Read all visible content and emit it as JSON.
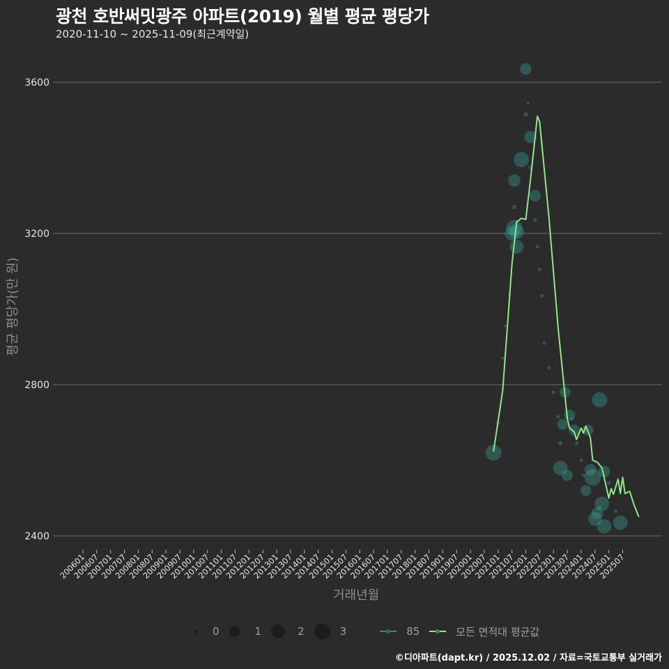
{
  "header": {
    "title": "광천 호반써밋광주 아파트(2019) 월별 평균 평당가",
    "subtitle": "2020-11-10 ~ 2025-11-09(최근계약일)"
  },
  "axes": {
    "ylabel": "평균 평당가(만 원)",
    "xlabel": "거래년월"
  },
  "legend": {
    "size_labels": [
      "0",
      "1",
      "2",
      "3"
    ],
    "series_labels": [
      "85",
      "모든 면적대 평균값"
    ]
  },
  "caption": "©디아파트(dapt.kr) / 2025.12.02 / 자료=국토교통부 실거래가",
  "colors": {
    "background": "#2b2b2b",
    "grid": "#6e6e6e",
    "bubble": "#3aa89a",
    "line": "#90e88a",
    "series85": "#2f8a88"
  },
  "chart_data": {
    "type": "scatter+line",
    "title": "광천 호반써밋광주 아파트(2019) 월별 평균 평당가",
    "subtitle": "2020-11-10 ~ 2025-11-09(최근계약일)",
    "xlabel": "거래년월",
    "ylabel": "평균 평당가(만 원)",
    "ylim": [
      2380,
      3680
    ],
    "yticks": [
      2400,
      2800,
      3200,
      3600
    ],
    "xticks": [
      "200601",
      "200607",
      "200701",
      "200707",
      "200801",
      "200807",
      "200901",
      "200907",
      "201001",
      "201007",
      "201101",
      "201107",
      "201201",
      "201207",
      "201301",
      "201307",
      "201401",
      "201407",
      "201501",
      "201507",
      "201601",
      "201607",
      "201701",
      "201707",
      "201801",
      "201807",
      "201901",
      "201907",
      "202001",
      "202007",
      "202101",
      "202107",
      "202201",
      "202207",
      "202301",
      "202307",
      "202401",
      "202407",
      "202501",
      "202507"
    ],
    "grid": true,
    "legend_position": "bottom",
    "size_legend": {
      "title": "",
      "values": [
        0,
        1,
        2,
        3
      ]
    },
    "series": [
      {
        "name": "85",
        "kind": "bubble",
        "points": [
          {
            "x": "2020-11",
            "y": 2620,
            "size": 2.2
          },
          {
            "x": "2021-01",
            "y": 2700,
            "size": 0.5
          },
          {
            "x": "2021-03",
            "y": 2870,
            "size": 0.4
          },
          {
            "x": "2021-04",
            "y": 2955,
            "size": 0.4
          },
          {
            "x": "2021-06",
            "y": 3040,
            "size": 0.4
          },
          {
            "x": "2021-07",
            "y": 3200,
            "size": 2.0
          },
          {
            "x": "2021-08",
            "y": 3215,
            "size": 2.2
          },
          {
            "x": "2021-09",
            "y": 3165,
            "size": 1.9
          },
          {
            "x": "2021-09",
            "y": 3205,
            "size": 2.0
          },
          {
            "x": "2021-08",
            "y": 3270,
            "size": 0.6
          },
          {
            "x": "2021-08",
            "y": 3340,
            "size": 1.7
          },
          {
            "x": "2021-11",
            "y": 3395,
            "size": 2.1
          },
          {
            "x": "2022-01",
            "y": 3515,
            "size": 0.6
          },
          {
            "x": "2022-01",
            "y": 3635,
            "size": 1.6
          },
          {
            "x": "2022-02",
            "y": 3545,
            "size": 0.4
          },
          {
            "x": "2022-03",
            "y": 3455,
            "size": 1.7
          },
          {
            "x": "2022-03",
            "y": 3375,
            "size": 0.5
          },
          {
            "x": "2022-05",
            "y": 3300,
            "size": 1.6
          },
          {
            "x": "2022-05",
            "y": 3235,
            "size": 0.5
          },
          {
            "x": "2022-06",
            "y": 3165,
            "size": 0.5
          },
          {
            "x": "2022-07",
            "y": 3105,
            "size": 0.5
          },
          {
            "x": "2022-08",
            "y": 3035,
            "size": 0.5
          },
          {
            "x": "2022-09",
            "y": 2910,
            "size": 0.5
          },
          {
            "x": "2022-11",
            "y": 2845,
            "size": 0.5
          },
          {
            "x": "2023-01",
            "y": 2780,
            "size": 0.5
          },
          {
            "x": "2023-03",
            "y": 2715,
            "size": 0.5
          },
          {
            "x": "2023-04",
            "y": 2645,
            "size": 0.6
          },
          {
            "x": "2023-04",
            "y": 2580,
            "size": 2.0
          },
          {
            "x": "2023-05",
            "y": 2695,
            "size": 1.5
          },
          {
            "x": "2023-06",
            "y": 2780,
            "size": 1.5
          },
          {
            "x": "2023-07",
            "y": 2560,
            "size": 1.5
          },
          {
            "x": "2023-08",
            "y": 2720,
            "size": 1.5
          },
          {
            "x": "2023-09",
            "y": 2710,
            "size": 0.5
          },
          {
            "x": "2023-10",
            "y": 2680,
            "size": 1.5
          },
          {
            "x": "2023-11",
            "y": 2645,
            "size": 0.5
          },
          {
            "x": "2024-01",
            "y": 2600,
            "size": 0.5
          },
          {
            "x": "2024-02",
            "y": 2560,
            "size": 0.5
          },
          {
            "x": "2024-03",
            "y": 2520,
            "size": 1.5
          },
          {
            "x": "2024-04",
            "y": 2680,
            "size": 1.5
          },
          {
            "x": "2024-05",
            "y": 2575,
            "size": 1.6
          },
          {
            "x": "2024-06",
            "y": 2555,
            "size": 2.3
          },
          {
            "x": "2024-07",
            "y": 2445,
            "size": 1.9
          },
          {
            "x": "2024-08",
            "y": 2460,
            "size": 1.6
          },
          {
            "x": "2024-09",
            "y": 2475,
            "size": 0.5
          },
          {
            "x": "2024-09",
            "y": 2760,
            "size": 2.1
          },
          {
            "x": "2024-10",
            "y": 2485,
            "size": 2.0
          },
          {
            "x": "2024-11",
            "y": 2425,
            "size": 2.0
          },
          {
            "x": "2024-11",
            "y": 2570,
            "size": 1.6
          },
          {
            "x": "2025-01",
            "y": 2540,
            "size": 0.5
          },
          {
            "x": "2025-04",
            "y": 2465,
            "size": 0.5
          },
          {
            "x": "2025-06",
            "y": 2435,
            "size": 2.0
          }
        ]
      },
      {
        "name": "모든 면적대 평균값",
        "kind": "line",
        "points": [
          {
            "x": "2020-11",
            "y": 2623
          },
          {
            "x": "2021-03",
            "y": 2785
          },
          {
            "x": "2021-07",
            "y": 3120
          },
          {
            "x": "2021-09",
            "y": 3230
          },
          {
            "x": "2021-11",
            "y": 3240
          },
          {
            "x": "2022-01",
            "y": 3237
          },
          {
            "x": "2022-03",
            "y": 3340
          },
          {
            "x": "2022-06",
            "y": 3510
          },
          {
            "x": "2022-07",
            "y": 3495
          },
          {
            "x": "2022-11",
            "y": 3245
          },
          {
            "x": "2023-03",
            "y": 2950
          },
          {
            "x": "2023-07",
            "y": 2710
          },
          {
            "x": "2023-08",
            "y": 2685
          },
          {
            "x": "2023-10",
            "y": 2675
          },
          {
            "x": "2023-11",
            "y": 2655
          },
          {
            "x": "2024-01",
            "y": 2685
          },
          {
            "x": "2024-02",
            "y": 2672
          },
          {
            "x": "2024-03",
            "y": 2690
          },
          {
            "x": "2024-05",
            "y": 2660
          },
          {
            "x": "2024-06",
            "y": 2600
          },
          {
            "x": "2024-08",
            "y": 2595
          },
          {
            "x": "2024-10",
            "y": 2580
          },
          {
            "x": "2025-01",
            "y": 2500
          },
          {
            "x": "2025-02",
            "y": 2525
          },
          {
            "x": "2025-03",
            "y": 2510
          },
          {
            "x": "2025-05",
            "y": 2550
          },
          {
            "x": "2025-06",
            "y": 2512
          },
          {
            "x": "2025-07",
            "y": 2555
          },
          {
            "x": "2025-08",
            "y": 2512
          },
          {
            "x": "2025-10",
            "y": 2518
          },
          {
            "x": "2025-12",
            "y": 2481
          },
          {
            "x": "2026-02",
            "y": 2450
          }
        ]
      }
    ]
  }
}
